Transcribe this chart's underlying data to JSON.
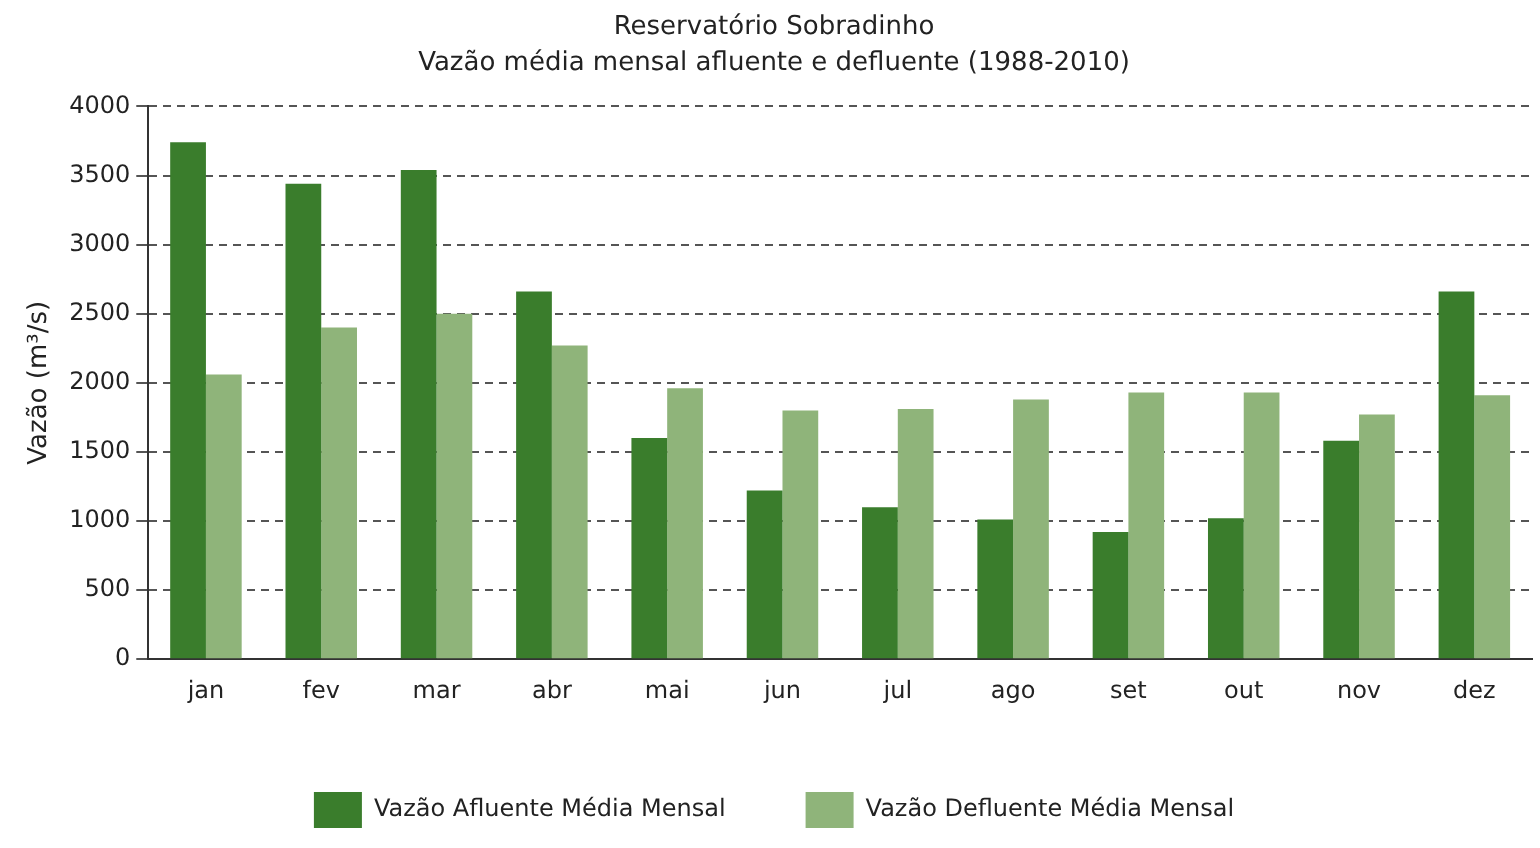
{
  "chart_data": {
    "type": "bar",
    "title": "Reservatório Sobradinho",
    "subtitle": "Vazão média mensal afluente e defluente (1988-2010)",
    "ylabel": "Vazão (m³/s)",
    "categories": [
      "jan",
      "fev",
      "mar",
      "abr",
      "mai",
      "jun",
      "jul",
      "ago",
      "set",
      "out",
      "nov",
      "dez"
    ],
    "series": [
      {
        "name": "Vazão Afluente Média Mensal",
        "color": "#3a7d2c",
        "values": [
          3740,
          3440,
          3540,
          2660,
          1600,
          1220,
          1100,
          1010,
          920,
          1020,
          1580,
          2660
        ]
      },
      {
        "name": "Vazão Defluente Média Mensal",
        "color": "#8fb47a",
        "values": [
          2060,
          2400,
          2500,
          2270,
          1960,
          1800,
          1810,
          1880,
          1930,
          1930,
          1770,
          1910
        ]
      }
    ],
    "ylim": [
      0,
      4000
    ],
    "yticks": [
      0,
      500,
      1000,
      1500,
      2000,
      2500,
      3000,
      3500,
      4000
    ],
    "grid": "y",
    "legend": "bottom"
  }
}
